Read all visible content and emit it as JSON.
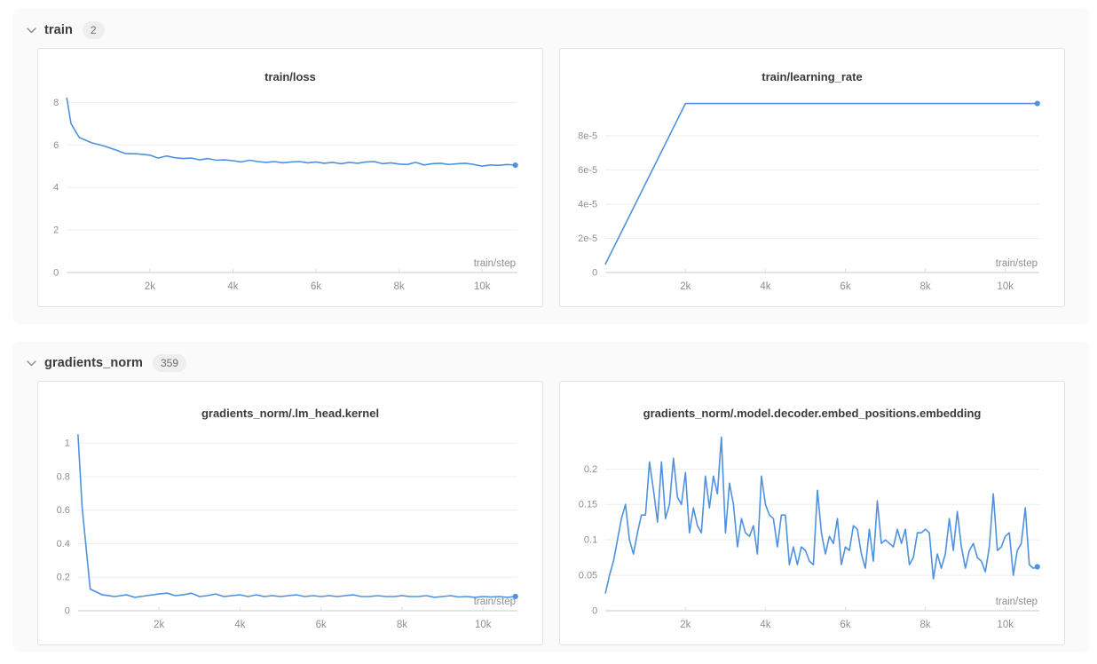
{
  "accent_color": "#4e92df",
  "text_colors": {
    "axis": "#8f8f8f",
    "title": "#3a3a3a",
    "section": "#3b3b3b"
  },
  "sections": [
    {
      "name": "train",
      "count": "2",
      "collapse_icon": "chevron-down",
      "chart_indexes": [
        0,
        1
      ]
    },
    {
      "name": "gradients_norm",
      "count": "359",
      "collapse_icon": "chevron-down",
      "chart_indexes": [
        2,
        3
      ]
    }
  ],
  "chart_data": [
    {
      "type": "line",
      "title": "train/loss",
      "xlabel": "train/step",
      "legend": "none",
      "grid": "horizontal",
      "color": "#4e92df",
      "end_marker": true,
      "xlim": [
        0,
        10850
      ],
      "ylim": [
        0,
        8.35
      ],
      "x_ticks": [
        {
          "v": 2000,
          "label": "2k"
        },
        {
          "v": 4000,
          "label": "4k"
        },
        {
          "v": 6000,
          "label": "6k"
        },
        {
          "v": 8000,
          "label": "8k"
        },
        {
          "v": 10000,
          "label": "10k"
        }
      ],
      "y_ticks": [
        {
          "v": 0,
          "label": "0"
        },
        {
          "v": 2,
          "label": "2"
        },
        {
          "v": 4,
          "label": "4"
        },
        {
          "v": 6,
          "label": "6"
        },
        {
          "v": 8,
          "label": "8"
        }
      ],
      "x": [
        0,
        100,
        300,
        600,
        900,
        1200,
        1400,
        1700,
        2000,
        2200,
        2400,
        2600,
        2800,
        3000,
        3200,
        3400,
        3600,
        3800,
        4000,
        4200,
        4400,
        4600,
        4800,
        5000,
        5200,
        5400,
        5600,
        5800,
        6000,
        6200,
        6400,
        6600,
        6800,
        7000,
        7200,
        7400,
        7600,
        7800,
        8000,
        8200,
        8400,
        8600,
        8800,
        9000,
        9200,
        9400,
        9600,
        9800,
        10000,
        10200,
        10400,
        10600,
        10800
      ],
      "y": [
        8.2,
        7.0,
        6.35,
        6.1,
        5.95,
        5.75,
        5.6,
        5.58,
        5.52,
        5.38,
        5.48,
        5.4,
        5.36,
        5.38,
        5.3,
        5.36,
        5.28,
        5.3,
        5.26,
        5.2,
        5.28,
        5.22,
        5.18,
        5.22,
        5.16,
        5.2,
        5.22,
        5.16,
        5.2,
        5.14,
        5.18,
        5.12,
        5.18,
        5.14,
        5.2,
        5.22,
        5.12,
        5.16,
        5.1,
        5.08,
        5.18,
        5.06,
        5.12,
        5.14,
        5.08,
        5.12,
        5.14,
        5.08,
        5.0,
        5.06,
        5.04,
        5.08,
        5.05
      ]
    },
    {
      "type": "line",
      "title": "train/learning_rate",
      "xlabel": "train/step",
      "legend": "none",
      "grid": "horizontal",
      "color": "#4e92df",
      "end_marker": true,
      "xlim": [
        0,
        10850
      ],
      "ylim": [
        0,
        0.000104
      ],
      "x_ticks": [
        {
          "v": 2000,
          "label": "2k"
        },
        {
          "v": 4000,
          "label": "4k"
        },
        {
          "v": 6000,
          "label": "6k"
        },
        {
          "v": 8000,
          "label": "8k"
        },
        {
          "v": 10000,
          "label": "10k"
        }
      ],
      "y_ticks": [
        {
          "v": 0,
          "label": "0"
        },
        {
          "v": 2e-05,
          "label": "2e-5"
        },
        {
          "v": 4e-05,
          "label": "4e-5"
        },
        {
          "v": 6e-05,
          "label": "6e-5"
        },
        {
          "v": 8e-05,
          "label": "8e-5"
        }
      ],
      "x": [
        0,
        2000,
        10800
      ],
      "y": [
        5e-06,
        9.9e-05,
        9.9e-05
      ]
    },
    {
      "type": "line",
      "title": "gradients_norm/.lm_head.kernel",
      "xlabel": "train/step",
      "legend": "none",
      "grid": "horizontal",
      "color": "#4e92df",
      "end_marker": true,
      "xlim": [
        0,
        10850
      ],
      "ylim": [
        0,
        1.07
      ],
      "x_ticks": [
        {
          "v": 2000,
          "label": "2k"
        },
        {
          "v": 4000,
          "label": "4k"
        },
        {
          "v": 6000,
          "label": "6k"
        },
        {
          "v": 8000,
          "label": "8k"
        },
        {
          "v": 10000,
          "label": "10k"
        }
      ],
      "y_ticks": [
        {
          "v": 0,
          "label": "0"
        },
        {
          "v": 0.2,
          "label": "0.2"
        },
        {
          "v": 0.4,
          "label": "0.4"
        },
        {
          "v": 0.6,
          "label": "0.6"
        },
        {
          "v": 0.8,
          "label": "0.8"
        },
        {
          "v": 1,
          "label": "1"
        }
      ],
      "x": [
        0,
        100,
        300,
        600,
        900,
        1200,
        1400,
        1700,
        2000,
        2200,
        2400,
        2600,
        2800,
        3000,
        3200,
        3400,
        3600,
        3800,
        4000,
        4200,
        4400,
        4600,
        4800,
        5000,
        5200,
        5400,
        5600,
        5800,
        6000,
        6200,
        6400,
        6600,
        6800,
        7000,
        7200,
        7400,
        7600,
        7800,
        8000,
        8200,
        8400,
        8600,
        8800,
        9000,
        9200,
        9400,
        9600,
        9800,
        10000,
        10200,
        10400,
        10600,
        10800
      ],
      "y": [
        1.05,
        0.62,
        0.13,
        0.095,
        0.085,
        0.095,
        0.08,
        0.09,
        0.1,
        0.105,
        0.09,
        0.095,
        0.105,
        0.085,
        0.09,
        0.1,
        0.085,
        0.09,
        0.095,
        0.085,
        0.095,
        0.085,
        0.09,
        0.085,
        0.09,
        0.095,
        0.085,
        0.09,
        0.085,
        0.09,
        0.085,
        0.09,
        0.095,
        0.085,
        0.085,
        0.09,
        0.085,
        0.085,
        0.09,
        0.085,
        0.085,
        0.09,
        0.08,
        0.085,
        0.09,
        0.082,
        0.085,
        0.08,
        0.085,
        0.082,
        0.085,
        0.08,
        0.085
      ]
    },
    {
      "type": "line",
      "title": "gradients_norm/.model.decoder.embed_positions.embedding",
      "xlabel": "train/step",
      "legend": "none",
      "grid": "horizontal",
      "color": "#4e92df",
      "end_marker": true,
      "xlim": [
        0,
        10850
      ],
      "ylim": [
        0,
        0.253
      ],
      "x_ticks": [
        {
          "v": 2000,
          "label": "2k"
        },
        {
          "v": 4000,
          "label": "4k"
        },
        {
          "v": 6000,
          "label": "6k"
        },
        {
          "v": 8000,
          "label": "8k"
        },
        {
          "v": 10000,
          "label": "10k"
        }
      ],
      "y_ticks": [
        {
          "v": 0,
          "label": "0"
        },
        {
          "v": 0.05,
          "label": "0.05"
        },
        {
          "v": 0.1,
          "label": "0.1"
        },
        {
          "v": 0.15,
          "label": "0.15"
        },
        {
          "v": 0.2,
          "label": "0.2"
        }
      ],
      "x": [
        0,
        100,
        200,
        300,
        400,
        500,
        600,
        700,
        800,
        900,
        1000,
        1100,
        1200,
        1300,
        1400,
        1500,
        1600,
        1700,
        1800,
        1900,
        2000,
        2100,
        2200,
        2300,
        2400,
        2500,
        2600,
        2700,
        2800,
        2900,
        3000,
        3100,
        3200,
        3300,
        3400,
        3500,
        3600,
        3700,
        3800,
        3900,
        4000,
        4100,
        4200,
        4300,
        4400,
        4500,
        4600,
        4700,
        4800,
        4900,
        5000,
        5100,
        5200,
        5300,
        5400,
        5500,
        5600,
        5700,
        5800,
        5900,
        6000,
        6100,
        6200,
        6300,
        6400,
        6500,
        6600,
        6700,
        6800,
        6900,
        7000,
        7100,
        7200,
        7300,
        7400,
        7500,
        7600,
        7700,
        7800,
        7900,
        8000,
        8100,
        8200,
        8300,
        8400,
        8500,
        8600,
        8700,
        8800,
        8900,
        9000,
        9100,
        9200,
        9300,
        9400,
        9500,
        9600,
        9700,
        9800,
        9900,
        10000,
        10100,
        10200,
        10300,
        10400,
        10500,
        10600,
        10700,
        10800
      ],
      "y": [
        0.025,
        0.05,
        0.07,
        0.1,
        0.13,
        0.15,
        0.1,
        0.08,
        0.11,
        0.135,
        0.135,
        0.21,
        0.17,
        0.125,
        0.21,
        0.13,
        0.15,
        0.215,
        0.16,
        0.15,
        0.195,
        0.11,
        0.145,
        0.12,
        0.11,
        0.19,
        0.145,
        0.19,
        0.165,
        0.245,
        0.11,
        0.18,
        0.15,
        0.09,
        0.13,
        0.11,
        0.105,
        0.12,
        0.08,
        0.19,
        0.15,
        0.135,
        0.13,
        0.09,
        0.135,
        0.135,
        0.065,
        0.09,
        0.065,
        0.09,
        0.085,
        0.07,
        0.065,
        0.17,
        0.11,
        0.08,
        0.105,
        0.095,
        0.13,
        0.065,
        0.09,
        0.085,
        0.12,
        0.115,
        0.08,
        0.06,
        0.115,
        0.07,
        0.155,
        0.095,
        0.1,
        0.095,
        0.09,
        0.115,
        0.095,
        0.115,
        0.065,
        0.075,
        0.11,
        0.11,
        0.115,
        0.11,
        0.045,
        0.08,
        0.06,
        0.08,
        0.13,
        0.085,
        0.14,
        0.09,
        0.06,
        0.085,
        0.095,
        0.075,
        0.07,
        0.055,
        0.09,
        0.165,
        0.085,
        0.09,
        0.105,
        0.11,
        0.05,
        0.085,
        0.095,
        0.145,
        0.065,
        0.06,
        0.062
      ]
    }
  ]
}
